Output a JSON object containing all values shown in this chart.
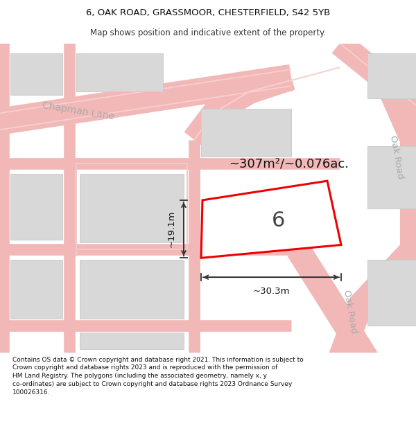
{
  "title_line1": "6, OAK ROAD, GRASSMOOR, CHESTERFIELD, S42 5YB",
  "title_line2": "Map shows position and indicative extent of the property.",
  "footer": "Contains OS data © Crown copyright and database right 2021. This information is subject to Crown copyright and database rights 2023 and is reproduced with the permission of HM Land Registry. The polygons (including the associated geometry, namely x, y co-ordinates) are subject to Crown copyright and database rights 2023 Ordnance Survey 100026316.",
  "background_color": "#ffffff",
  "map_bg": "#ffffff",
  "road_color": "#f2b8b8",
  "road_thin_color": "#f5c8c8",
  "building_color": "#d8d8d8",
  "building_edge": "#cccccc",
  "highlight_color": "#ee0000",
  "street_label_color": "#aaaaaa",
  "area_text": "~307m²/~0.076ac.",
  "number_label": "6",
  "dim_h": "~19.1m",
  "dim_w": "~30.3m",
  "fig_width": 6.0,
  "fig_height": 6.25,
  "dpi": 100,
  "title_fontsize": 9.5,
  "subtitle_fontsize": 8.5,
  "footer_fontsize": 6.5
}
